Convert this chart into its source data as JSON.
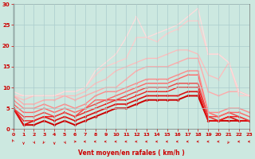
{
  "background_color": "#cce8e0",
  "grid_color": "#aacccc",
  "xlabel": "Vent moyen/en rafales ( km/h )",
  "xlim": [
    0,
    23
  ],
  "ylim": [
    0,
    30
  ],
  "yticks": [
    0,
    5,
    10,
    15,
    20,
    25,
    30
  ],
  "xticks": [
    0,
    1,
    2,
    3,
    4,
    5,
    6,
    7,
    8,
    9,
    10,
    11,
    12,
    13,
    14,
    15,
    16,
    17,
    18,
    19,
    20,
    21,
    22,
    23
  ],
  "series": [
    {
      "x": [
        0,
        1,
        2,
        3,
        4,
        5,
        6,
        7,
        8,
        9,
        10,
        11,
        12,
        13,
        14,
        15,
        16,
        17,
        18,
        19,
        20,
        21,
        22,
        23
      ],
      "y": [
        5,
        1,
        1,
        2,
        1,
        2,
        1,
        2,
        3,
        4,
        5,
        5,
        6,
        7,
        7,
        7,
        7,
        8,
        8,
        2,
        2,
        2,
        2,
        2
      ],
      "color": "#cc0000",
      "lw": 1.4,
      "marker": "D",
      "ms": 2.0
    },
    {
      "x": [
        0,
        1,
        2,
        3,
        4,
        5,
        6,
        7,
        8,
        9,
        10,
        11,
        12,
        13,
        14,
        15,
        16,
        17,
        18,
        19,
        20,
        21,
        22,
        23
      ],
      "y": [
        5,
        1,
        2,
        3,
        2,
        3,
        2,
        3,
        4,
        5,
        6,
        6,
        7,
        8,
        8,
        8,
        8,
        9,
        9,
        2,
        2,
        3,
        2,
        2
      ],
      "color": "#dd1111",
      "lw": 1.2,
      "marker": "o",
      "ms": 2.0
    },
    {
      "x": [
        0,
        1,
        2,
        3,
        4,
        5,
        6,
        7,
        8,
        9,
        10,
        11,
        12,
        13,
        14,
        15,
        16,
        17,
        18,
        19,
        20,
        21,
        22,
        23
      ],
      "y": [
        5,
        2,
        2,
        3,
        3,
        4,
        3,
        4,
        5,
        6,
        7,
        7,
        8,
        9,
        9,
        9,
        10,
        10,
        10,
        3,
        2,
        3,
        3,
        2
      ],
      "color": "#ee2222",
      "lw": 1.0,
      "marker": "s",
      "ms": 1.8
    },
    {
      "x": [
        0,
        1,
        2,
        3,
        4,
        5,
        6,
        7,
        8,
        9,
        10,
        11,
        12,
        13,
        14,
        15,
        16,
        17,
        18,
        19,
        20,
        21,
        22,
        23
      ],
      "y": [
        5,
        3,
        3,
        4,
        3,
        4,
        3,
        5,
        6,
        7,
        7,
        8,
        9,
        10,
        10,
        10,
        11,
        11,
        11,
        3,
        3,
        4,
        3,
        2
      ],
      "color": "#ee4444",
      "lw": 1.0,
      "marker": "^",
      "ms": 1.8
    },
    {
      "x": [
        0,
        1,
        2,
        3,
        4,
        5,
        6,
        7,
        8,
        9,
        10,
        11,
        12,
        13,
        14,
        15,
        16,
        17,
        18,
        19,
        20,
        21,
        22,
        23
      ],
      "y": [
        6,
        4,
        4,
        5,
        4,
        5,
        4,
        5,
        7,
        7,
        8,
        9,
        10,
        11,
        11,
        11,
        12,
        13,
        13,
        4,
        3,
        4,
        4,
        3
      ],
      "color": "#ff6666",
      "lw": 1.0,
      "marker": "v",
      "ms": 1.8
    },
    {
      "x": [
        0,
        1,
        2,
        3,
        4,
        5,
        6,
        7,
        8,
        9,
        10,
        11,
        12,
        13,
        14,
        15,
        16,
        17,
        18,
        19,
        20,
        21,
        22,
        23
      ],
      "y": [
        7,
        5,
        5,
        6,
        5,
        6,
        5,
        6,
        8,
        9,
        9,
        10,
        11,
        12,
        12,
        12,
        13,
        14,
        14,
        4,
        4,
        5,
        5,
        4
      ],
      "color": "#ff8888",
      "lw": 1.0,
      "marker": "D",
      "ms": 1.6
    },
    {
      "x": [
        0,
        1,
        2,
        3,
        4,
        5,
        6,
        7,
        8,
        9,
        10,
        11,
        12,
        13,
        14,
        15,
        16,
        17,
        18,
        19,
        20,
        21,
        22,
        23
      ],
      "y": [
        8,
        6,
        6,
        7,
        7,
        8,
        7,
        8,
        9,
        10,
        10,
        12,
        14,
        15,
        15,
        15,
        16,
        17,
        17,
        9,
        8,
        9,
        9,
        8
      ],
      "color": "#ffaaaa",
      "lw": 1.0,
      "marker": "o",
      "ms": 1.6
    },
    {
      "x": [
        0,
        1,
        2,
        3,
        4,
        5,
        6,
        7,
        8,
        9,
        10,
        11,
        12,
        13,
        14,
        15,
        16,
        17,
        18,
        19,
        20,
        21,
        22,
        23
      ],
      "y": [
        8,
        7,
        8,
        8,
        8,
        8,
        8,
        9,
        11,
        12,
        14,
        15,
        16,
        17,
        17,
        18,
        19,
        19,
        18,
        13,
        12,
        16,
        9,
        8
      ],
      "color": "#ffbbbb",
      "lw": 0.9,
      "marker": "^",
      "ms": 1.6
    },
    {
      "x": [
        0,
        1,
        2,
        3,
        4,
        5,
        6,
        7,
        8,
        9,
        10,
        11,
        12,
        13,
        14,
        15,
        16,
        17,
        18,
        19,
        20,
        21,
        22,
        23
      ],
      "y": [
        8,
        8,
        8,
        8,
        8,
        9,
        9,
        10,
        13,
        15,
        16,
        17,
        22,
        22,
        21,
        23,
        24,
        26,
        26,
        18,
        18,
        16,
        8,
        8
      ],
      "color": "#ffcccc",
      "lw": 0.9,
      "marker": "D",
      "ms": 1.5
    },
    {
      "x": [
        0,
        1,
        2,
        3,
        4,
        5,
        6,
        7,
        8,
        9,
        10,
        11,
        12,
        13,
        14,
        15,
        16,
        17,
        18,
        19,
        20,
        21,
        22,
        23
      ],
      "y": [
        9,
        8,
        8,
        8,
        8,
        9,
        9,
        10,
        14,
        16,
        18,
        22,
        27,
        22,
        23,
        24,
        25,
        27,
        29,
        18,
        18,
        16,
        9,
        8
      ],
      "color": "#ffdddd",
      "lw": 0.9,
      "marker": "s",
      "ms": 1.5
    }
  ],
  "arrow_angles": [
    225,
    0,
    45,
    315,
    0,
    45,
    90,
    270,
    270,
    270,
    270,
    270,
    270,
    270,
    270,
    270,
    270,
    270,
    270,
    270,
    270,
    315,
    270,
    270
  ]
}
